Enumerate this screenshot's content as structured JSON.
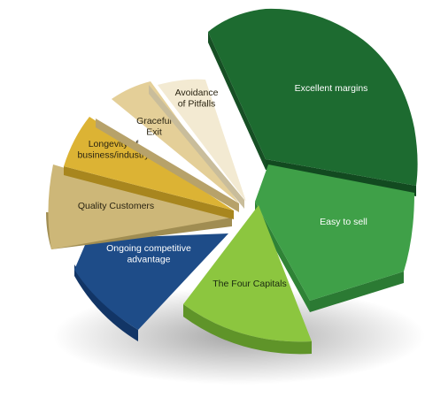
{
  "diagram": {
    "segments": [
      {
        "id": "excellent-margins",
        "lines": [
          "Excellent margins"
        ],
        "color": "#1d6b30",
        "text_color": "#ffffff"
      },
      {
        "id": "easy-to-sell",
        "lines": [
          "Easy to sell"
        ],
        "color": "#3fa048",
        "text_color": "#ffffff"
      },
      {
        "id": "the-four-capitals",
        "lines": [
          "The Four Capitals"
        ],
        "color": "#8cc63f",
        "text_color": "#1a2a10"
      },
      {
        "id": "ongoing-competitive-advantage",
        "lines": [
          "Ongoing competitive",
          "advantage"
        ],
        "color": "#1e4c88",
        "text_color": "#ffffff"
      },
      {
        "id": "quality-customers",
        "lines": [
          "Quality Customers"
        ],
        "color": "#cdb778",
        "text_color": "#2a2412"
      },
      {
        "id": "longevity",
        "lines": [
          "Longevity of",
          "business/industry"
        ],
        "color": "#dcb334",
        "text_color": "#2a2412"
      },
      {
        "id": "graceful-exit",
        "lines": [
          "Graceful",
          "Exit"
        ],
        "color": "#e4cf98",
        "text_color": "#2a2412"
      },
      {
        "id": "avoidance-of-pitfalls",
        "lines": [
          "Avoidance",
          "of Pitfalls"
        ],
        "color": "#f3ead2",
        "text_color": "#2a2412"
      }
    ]
  }
}
